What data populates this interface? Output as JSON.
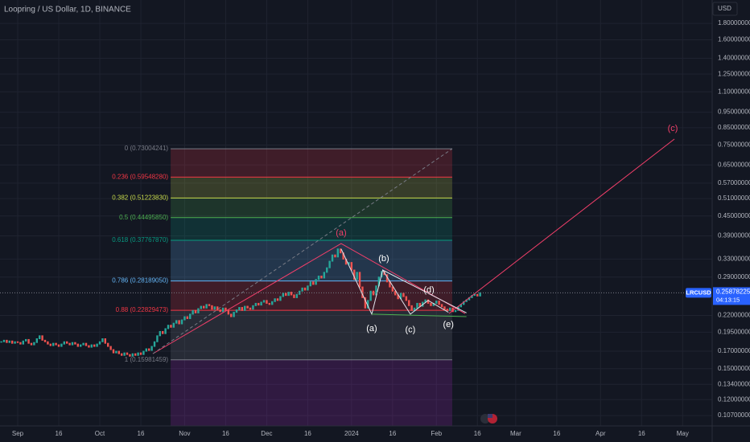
{
  "chart_data": {
    "type": "candlestick",
    "title": "Loopring / US Dollar, 1D, BINANCE",
    "currency": "USD",
    "symbol": "LRCUSD",
    "last_price": 0.25878225,
    "countdown": "04:13:15",
    "up_color": "#26a69a",
    "down_color": "#ef5350",
    "log_scale": true,
    "grid": true,
    "x": [
      -6,
      -5,
      -4,
      -3,
      -2,
      -1,
      0,
      1,
      2,
      3,
      4,
      5,
      6,
      7,
      8,
      9,
      10,
      11,
      12,
      13,
      14,
      15,
      16,
      17,
      18,
      19,
      20,
      21,
      22,
      23,
      24,
      25,
      26,
      27,
      28,
      29,
      30,
      31,
      32,
      33,
      34,
      35,
      36,
      37,
      38,
      39,
      40,
      41,
      42,
      43,
      44,
      45,
      46,
      47,
      48,
      49,
      50,
      51,
      52,
      53,
      54,
      55,
      56,
      57,
      58,
      59,
      60,
      61,
      62,
      63,
      64,
      65,
      66,
      67,
      68,
      69,
      70,
      71,
      72,
      73,
      74,
      75,
      76,
      77,
      78,
      79,
      80,
      81,
      82,
      83,
      84,
      85,
      86,
      87,
      88,
      89,
      90,
      91,
      92,
      93,
      94,
      95,
      96,
      97,
      98,
      99,
      100,
      101,
      102,
      103,
      104,
      105,
      106,
      107,
      108,
      109,
      110,
      111,
      112,
      113,
      114,
      115,
      116,
      117,
      118,
      119,
      120,
      121,
      122,
      123,
      124,
      125,
      126,
      127,
      128,
      129,
      130,
      131,
      132,
      133,
      134,
      135,
      136,
      137,
      138,
      139,
      140,
      141,
      142,
      143,
      144,
      145,
      146,
      147,
      148,
      149,
      150,
      151,
      152,
      153,
      154,
      155,
      156,
      157,
      158,
      159,
      160,
      161,
      162,
      163,
      164,
      165,
      166,
      167,
      168,
      169
    ],
    "values": [
      0.182,
      0.184,
      0.181,
      0.183,
      0.18,
      0.182,
      0.181,
      0.179,
      0.183,
      0.185,
      0.18,
      0.178,
      0.181,
      0.186,
      0.19,
      0.184,
      0.182,
      0.179,
      0.177,
      0.18,
      0.178,
      0.176,
      0.179,
      0.182,
      0.18,
      0.178,
      0.181,
      0.179,
      0.176,
      0.178,
      0.18,
      0.177,
      0.175,
      0.178,
      0.176,
      0.179,
      0.182,
      0.186,
      0.18,
      0.176,
      0.172,
      0.168,
      0.17,
      0.167,
      0.165,
      0.168,
      0.166,
      0.164,
      0.167,
      0.165,
      0.168,
      0.166,
      0.17,
      0.173,
      0.171,
      0.176,
      0.182,
      0.19,
      0.196,
      0.193,
      0.2,
      0.205,
      0.202,
      0.208,
      0.212,
      0.207,
      0.213,
      0.218,
      0.215,
      0.222,
      0.228,
      0.224,
      0.231,
      0.235,
      0.232,
      0.238,
      0.236,
      0.23,
      0.234,
      0.229,
      0.226,
      0.232,
      0.228,
      0.222,
      0.218,
      0.225,
      0.229,
      0.233,
      0.228,
      0.235,
      0.232,
      0.23,
      0.236,
      0.24,
      0.237,
      0.242,
      0.245,
      0.24,
      0.238,
      0.243,
      0.248,
      0.245,
      0.252,
      0.258,
      0.254,
      0.26,
      0.255,
      0.25,
      0.256,
      0.262,
      0.268,
      0.264,
      0.272,
      0.28,
      0.275,
      0.285,
      0.292,
      0.288,
      0.3,
      0.31,
      0.325,
      0.34,
      0.335,
      0.355,
      0.345,
      0.33,
      0.318,
      0.322,
      0.305,
      0.285,
      0.3,
      0.27,
      0.25,
      0.232,
      0.245,
      0.262,
      0.255,
      0.272,
      0.29,
      0.302,
      0.295,
      0.28,
      0.27,
      0.262,
      0.255,
      0.248,
      0.258,
      0.252,
      0.245,
      0.236,
      0.228,
      0.232,
      0.24,
      0.235,
      0.242,
      0.246,
      0.24,
      0.236,
      0.24,
      0.244,
      0.238,
      0.234,
      0.23,
      0.228,
      0.232,
      0.226,
      0.228,
      0.234,
      0.238,
      0.243,
      0.246,
      0.25,
      0.254,
      0.256,
      0.253,
      0.259
    ],
    "xlim": [
      -6.47,
      253.8
    ],
    "xticks": [
      {
        "value": 0,
        "label": "Sep"
      },
      {
        "value": 15,
        "label": "16"
      },
      {
        "value": 30,
        "label": "Oct"
      },
      {
        "value": 45,
        "label": "16"
      },
      {
        "value": 61,
        "label": "Nov"
      },
      {
        "value": 76,
        "label": "16"
      },
      {
        "value": 91,
        "label": "Dec"
      },
      {
        "value": 106,
        "label": "16"
      },
      {
        "value": 122,
        "label": "2024"
      },
      {
        "value": 137,
        "label": "16"
      },
      {
        "value": 153,
        "label": "Feb"
      },
      {
        "value": 168,
        "label": "16"
      },
      {
        "value": 182,
        "label": "Mar"
      },
      {
        "value": 197,
        "label": "16"
      },
      {
        "value": 213,
        "label": "Apr"
      },
      {
        "value": 228,
        "label": "16"
      },
      {
        "value": 243,
        "label": "May"
      }
    ],
    "ylim": [
      0.0993,
      2.13
    ],
    "yticks": [
      {
        "value": 1.8,
        "label": "1.80000000"
      },
      {
        "value": 1.6,
        "label": "1.60000000"
      },
      {
        "value": 1.4,
        "label": "1.40000000"
      },
      {
        "value": 1.25,
        "label": "1.25000000"
      },
      {
        "value": 1.1,
        "label": "1.10000000"
      },
      {
        "value": 0.95,
        "label": "0.95000000"
      },
      {
        "value": 0.85,
        "label": "0.85000000"
      },
      {
        "value": 0.75,
        "label": "0.75000000"
      },
      {
        "value": 0.65,
        "label": "0.65000000"
      },
      {
        "value": 0.57,
        "label": "0.57000000"
      },
      {
        "value": 0.51,
        "label": "0.51000000"
      },
      {
        "value": 0.45,
        "label": "0.45000000"
      },
      {
        "value": 0.39,
        "label": "0.39000000"
      },
      {
        "value": 0.33,
        "label": "0.33000000"
      },
      {
        "value": 0.29,
        "label": "0.29000000"
      },
      {
        "value": 0.22,
        "label": "0.22000000"
      },
      {
        "value": 0.195,
        "label": "0.19500000"
      },
      {
        "value": 0.17,
        "label": "0.17000000"
      },
      {
        "value": 0.15,
        "label": "0.15000000"
      },
      {
        "value": 0.134,
        "label": "0.13400000"
      },
      {
        "value": 0.12,
        "label": "0.12000000"
      },
      {
        "value": 0.107,
        "label": "0.10700000"
      }
    ],
    "fib": {
      "start": 55.9,
      "end": 158.8,
      "levels": [
        {
          "label": "0 (0.73004241)",
          "value": 0.73004241,
          "color": "#787b86"
        },
        {
          "label": "0.236 (0.59548280)",
          "value": 0.5954828,
          "color": "#f23645"
        },
        {
          "label": "0.382 (0.51223830)",
          "value": 0.5122383,
          "color": "#c6d94a"
        },
        {
          "label": "0.5 (0.44495850)",
          "value": 0.4449585,
          "color": "#4caf50"
        },
        {
          "label": "0.618 (0.37767870)",
          "value": 0.3776787,
          "color": "#089981"
        },
        {
          "label": "0.786 (0.28189050)",
          "value": 0.2818905,
          "color": "#64b5f6"
        },
        {
          "label": "0.88 (0.22829473)",
          "value": 0.22829473,
          "color": "#f23645"
        },
        {
          "label": "1 (0.15981459)",
          "value": 0.15981459,
          "color": "#787b86"
        }
      ]
    },
    "wave_lines": [
      {
        "color": "#f23f6a",
        "x": [
          49.4,
          118.2,
          163.5
        ],
        "y": [
          0.167,
          0.369,
          0.223
        ]
      },
      {
        "color": "#f23f6a",
        "x": [
          157.6,
          240
        ],
        "y": [
          0.223,
          0.783
        ]
      },
      {
        "color": "#787b86",
        "dashed": true,
        "x": [
          49.4,
          158.8
        ],
        "y": [
          0.167,
          0.73
        ]
      },
      {
        "color": "#e0e3eb",
        "x": [
          118.2,
          129.4,
          133.4,
          143.5,
          150,
          157.4
        ],
        "y": [
          0.355,
          0.222,
          0.305,
          0.222,
          0.245,
          0.225
        ]
      },
      {
        "color": "#e0e3eb",
        "x": [
          133.4,
          164
        ],
        "y": [
          0.305,
          0.224
        ]
      },
      {
        "color": "#4caf50",
        "x": [
          129.4,
          164
        ],
        "y": [
          0.222,
          0.218
        ]
      }
    ],
    "annotations": [
      {
        "text": "(a)",
        "x": 118.2,
        "y": 0.398,
        "color": "#f23f6a"
      },
      {
        "text": "(b)",
        "x": 133.8,
        "y": 0.331,
        "color": "#ffffff"
      },
      {
        "text": "(a)",
        "x": 129.4,
        "y": 0.2,
        "color": "#ffffff"
      },
      {
        "text": "(c)",
        "x": 143.5,
        "y": 0.198,
        "color": "#ffffff"
      },
      {
        "text": "(d)",
        "x": 150.3,
        "y": 0.264,
        "color": "#ffffff"
      },
      {
        "text": "(e)",
        "x": 157.4,
        "y": 0.206,
        "color": "#ffffff"
      },
      {
        "text": "(c)",
        "x": 239.4,
        "y": 0.844,
        "color": "#f23f6a"
      }
    ]
  }
}
